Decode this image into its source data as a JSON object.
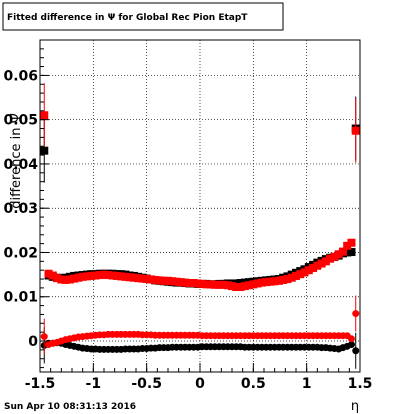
{
  "chart_data": {
    "type": "scatter",
    "title": "Fitted difference in  Ψ  for Global Rec Pion EtapT",
    "ylabel": "difference in Ψ",
    "xlabel": "η",
    "xlim": [
      -1.5,
      1.5
    ],
    "ylim": [
      -0.007,
      0.068
    ],
    "grid": true,
    "x_ticks": [
      "-1.5",
      "-1",
      "-0.5",
      "0",
      "0.5",
      "1",
      "1.5"
    ],
    "x_tick_values": [
      -1.5,
      -1,
      -0.5,
      0,
      0.5,
      1,
      1.5
    ],
    "y_ticks": [
      "0",
      "0.01",
      "0.02",
      "0.03",
      "0.04",
      "0.05",
      "0.06"
    ],
    "y_tick_values": [
      0,
      0.01,
      0.02,
      0.03,
      0.04,
      0.05,
      0.06
    ],
    "colors": {
      "black_series": "#000000",
      "red_series": "#ff0000"
    },
    "x": [
      -1.46,
      -1.42,
      -1.38,
      -1.34,
      -1.3,
      -1.26,
      -1.22,
      -1.18,
      -1.14,
      -1.1,
      -1.06,
      -1.02,
      -0.98,
      -0.94,
      -0.9,
      -0.86,
      -0.82,
      -0.78,
      -0.74,
      -0.7,
      -0.66,
      -0.62,
      -0.58,
      -0.54,
      -0.5,
      -0.46,
      -0.42,
      -0.38,
      -0.34,
      -0.3,
      -0.26,
      -0.22,
      -0.18,
      -0.14,
      -0.1,
      -0.06,
      -0.02,
      0.02,
      0.06,
      0.1,
      0.14,
      0.18,
      0.22,
      0.26,
      0.3,
      0.34,
      0.38,
      0.42,
      0.46,
      0.5,
      0.54,
      0.58,
      0.62,
      0.66,
      0.7,
      0.74,
      0.78,
      0.82,
      0.86,
      0.9,
      0.94,
      0.98,
      1.02,
      1.06,
      1.1,
      1.14,
      1.18,
      1.22,
      1.26,
      1.3,
      1.34,
      1.38,
      1.42,
      1.46
    ],
    "series": [
      {
        "marker": "square",
        "color": "#000000",
        "values": [
          0.043,
          0.0148,
          0.0145,
          0.0143,
          0.0142,
          0.0143,
          0.0145,
          0.0147,
          0.0148,
          0.0149,
          0.015,
          0.0151,
          0.0151,
          0.0152,
          0.0152,
          0.0152,
          0.0152,
          0.0151,
          0.0151,
          0.015,
          0.0148,
          0.0147,
          0.0145,
          0.0143,
          0.0141,
          0.0139,
          0.0137,
          0.0136,
          0.0135,
          0.0134,
          0.0133,
          0.0132,
          0.0132,
          0.0131,
          0.013,
          0.013,
          0.0129,
          0.0129,
          0.0129,
          0.0128,
          0.0128,
          0.0129,
          0.0129,
          0.013,
          0.013,
          0.013,
          0.0131,
          0.0132,
          0.0133,
          0.0134,
          0.0135,
          0.0136,
          0.0137,
          0.0138,
          0.0139,
          0.014,
          0.0143,
          0.0146,
          0.015,
          0.0154,
          0.0158,
          0.0162,
          0.0167,
          0.0172,
          0.0177,
          0.0181,
          0.0185,
          0.0188,
          0.019,
          0.0193,
          0.0198,
          0.02,
          0.0201,
          0.048
        ]
      },
      {
        "marker": "square",
        "color": "#ff0000",
        "values": [
          0.051,
          0.0152,
          0.0148,
          0.0142,
          0.0139,
          0.0138,
          0.0139,
          0.0141,
          0.0143,
          0.0145,
          0.0146,
          0.0147,
          0.0148,
          0.0149,
          0.015,
          0.0149,
          0.0148,
          0.0147,
          0.0146,
          0.0145,
          0.0144,
          0.0143,
          0.0142,
          0.0141,
          0.014,
          0.0139,
          0.0138,
          0.0137,
          0.0136,
          0.0136,
          0.0135,
          0.0134,
          0.0133,
          0.0132,
          0.0131,
          0.0131,
          0.013,
          0.0129,
          0.0128,
          0.0128,
          0.0127,
          0.0127,
          0.0127,
          0.0126,
          0.0124,
          0.0122,
          0.0122,
          0.0124,
          0.0126,
          0.0128,
          0.013,
          0.0132,
          0.0133,
          0.0134,
          0.0135,
          0.0136,
          0.0138,
          0.014,
          0.0143,
          0.0147,
          0.0151,
          0.0155,
          0.016,
          0.0165,
          0.017,
          0.0175,
          0.018,
          0.0186,
          0.019,
          0.0196,
          0.0202,
          0.0215,
          0.0222,
          0.0475
        ]
      },
      {
        "marker": "circle",
        "color": "#000000",
        "values": [
          -0.001,
          -0.0005,
          -0.0005,
          -0.0004,
          -0.0005,
          -0.0008,
          -0.001,
          -0.0012,
          -0.0014,
          -0.0016,
          -0.0017,
          -0.0018,
          -0.0018,
          -0.0019,
          -0.0019,
          -0.0019,
          -0.0019,
          -0.0019,
          -0.0019,
          -0.0018,
          -0.0018,
          -0.0018,
          -0.0018,
          -0.0017,
          -0.0017,
          -0.0016,
          -0.0016,
          -0.0015,
          -0.0015,
          -0.0015,
          -0.0014,
          -0.0014,
          -0.0014,
          -0.0014,
          -0.0014,
          -0.0014,
          -0.0014,
          -0.0013,
          -0.0013,
          -0.0013,
          -0.0013,
          -0.0013,
          -0.0013,
          -0.0013,
          -0.0013,
          -0.0013,
          -0.0013,
          -0.0014,
          -0.0014,
          -0.0014,
          -0.0014,
          -0.0014,
          -0.0014,
          -0.0014,
          -0.0014,
          -0.0014,
          -0.0014,
          -0.0014,
          -0.0014,
          -0.0014,
          -0.0014,
          -0.0014,
          -0.0014,
          -0.0014,
          -0.0014,
          -0.0015,
          -0.0015,
          -0.0016,
          -0.0017,
          -0.0018,
          -0.0015,
          -0.0012,
          -0.0008,
          -0.0022
        ]
      },
      {
        "marker": "circle",
        "color": "#ff0000",
        "values": [
          0.001,
          -0.0008,
          -0.0005,
          -0.0003,
          0.0,
          0.0003,
          0.0005,
          0.0007,
          0.0009,
          0.001,
          0.0011,
          0.0012,
          0.0013,
          0.0014,
          0.0014,
          0.0015,
          0.0015,
          0.0015,
          0.0015,
          0.0015,
          0.0015,
          0.0015,
          0.0015,
          0.0014,
          0.0014,
          0.0014,
          0.0013,
          0.0013,
          0.0013,
          0.0013,
          0.0013,
          0.0013,
          0.0013,
          0.0013,
          0.0013,
          0.0013,
          0.0013,
          0.0012,
          0.0012,
          0.0012,
          0.0012,
          0.0012,
          0.0012,
          0.0012,
          0.0012,
          0.0012,
          0.0012,
          0.0012,
          0.0012,
          0.0012,
          0.0012,
          0.0012,
          0.0012,
          0.0012,
          0.0012,
          0.0012,
          0.0012,
          0.0012,
          0.0012,
          0.0012,
          0.0012,
          0.0012,
          0.0012,
          0.0012,
          0.0012,
          0.0012,
          0.0012,
          0.0012,
          0.0012,
          0.0012,
          0.0012,
          0.0012,
          0.0005,
          0.0062
        ]
      }
    ]
  },
  "footer": {
    "timestamp": "Sun Apr 10 08:31:13 2016"
  }
}
